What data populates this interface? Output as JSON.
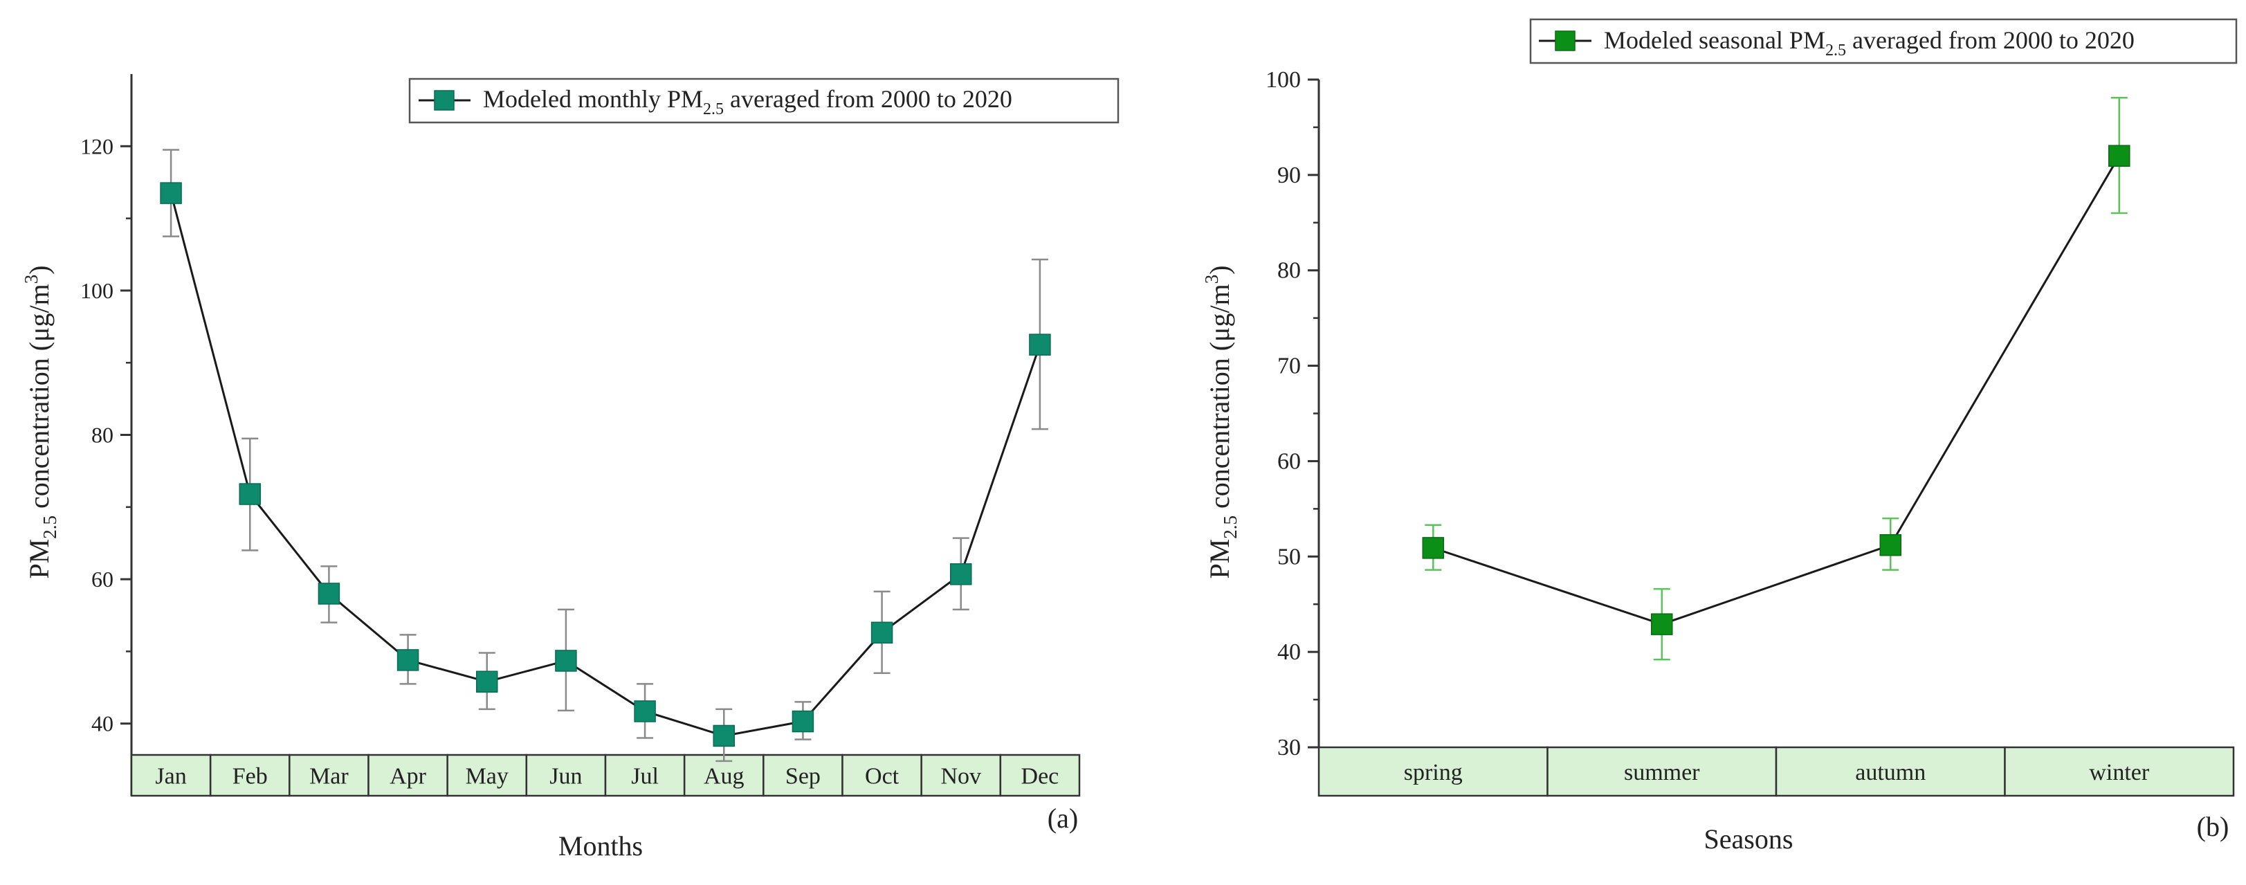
{
  "chart_data": [
    {
      "type": "line",
      "panel_label": "(a)",
      "xlabel": "Months",
      "ylabel": {
        "prefix": "PM",
        "sub": "2.5",
        "suffix": " concentration (μg/m",
        "sup": "3",
        "close": ")"
      },
      "ylim": [
        30,
        130
      ],
      "yticks": [
        40,
        60,
        80,
        100,
        120
      ],
      "categories": [
        "Jan",
        "Feb",
        "Mar",
        "Apr",
        "May",
        "Jun",
        "Jul",
        "Aug",
        "Sep",
        "Oct",
        "Nov",
        "Dec"
      ],
      "series": [
        {
          "name": "Modeled monthly PM2.5 averaged from 2000 to 2020",
          "values": [
            113.5,
            71.8,
            58.0,
            48.8,
            45.8,
            48.7,
            41.7,
            38.3,
            40.3,
            52.6,
            60.7,
            92.5
          ],
          "error_low": [
            107.5,
            64.0,
            54.0,
            45.5,
            42.0,
            41.8,
            38.0,
            34.8,
            37.8,
            47.0,
            55.8,
            80.8
          ],
          "error_high": [
            119.5,
            79.5,
            61.8,
            52.3,
            49.8,
            55.8,
            45.5,
            42.0,
            43.0,
            58.3,
            65.7,
            104.3
          ]
        }
      ],
      "legend": {
        "prefix": "Modeled monthly PM",
        "sub": "2.5",
        "suffix": " averaged from 2000 to 2020",
        "placement": "top-right"
      },
      "colors": {
        "marker": "#0e8a6c",
        "marker_edge": "#0a6b53",
        "line": "#1a1a1a",
        "errorbar": "#8a8a8a",
        "category_fill": "#d9f2d6"
      }
    },
    {
      "type": "line",
      "panel_label": "(b)",
      "xlabel": "Seasons",
      "ylabel": {
        "prefix": "PM",
        "sub": "2.5",
        "suffix": " concentration (μg/m",
        "sup": "3",
        "close": ")"
      },
      "ylim": [
        30,
        100
      ],
      "yticks": [
        30,
        40,
        50,
        60,
        70,
        80,
        90,
        100
      ],
      "categories": [
        "spring",
        "summer",
        "autumn",
        "winter"
      ],
      "series": [
        {
          "name": "Modeled seasonal PM2.5 averaged from 2000 to 2020",
          "values": [
            50.9,
            42.9,
            51.2,
            92.0
          ],
          "error_low": [
            48.6,
            39.2,
            48.6,
            86.0
          ],
          "error_high": [
            53.3,
            46.6,
            54.0,
            98.1
          ]
        }
      ],
      "legend": {
        "prefix": "Modeled seasonal PM",
        "sub": "2.5",
        "suffix": " averaged from 2000 to 2020",
        "placement": "top-right"
      },
      "colors": {
        "marker": "#0c8f17",
        "marker_edge": "#0a6b12",
        "line": "#1a1a1a",
        "errorbar": "#5cc25c",
        "category_fill": "#d9f2d6"
      }
    }
  ]
}
